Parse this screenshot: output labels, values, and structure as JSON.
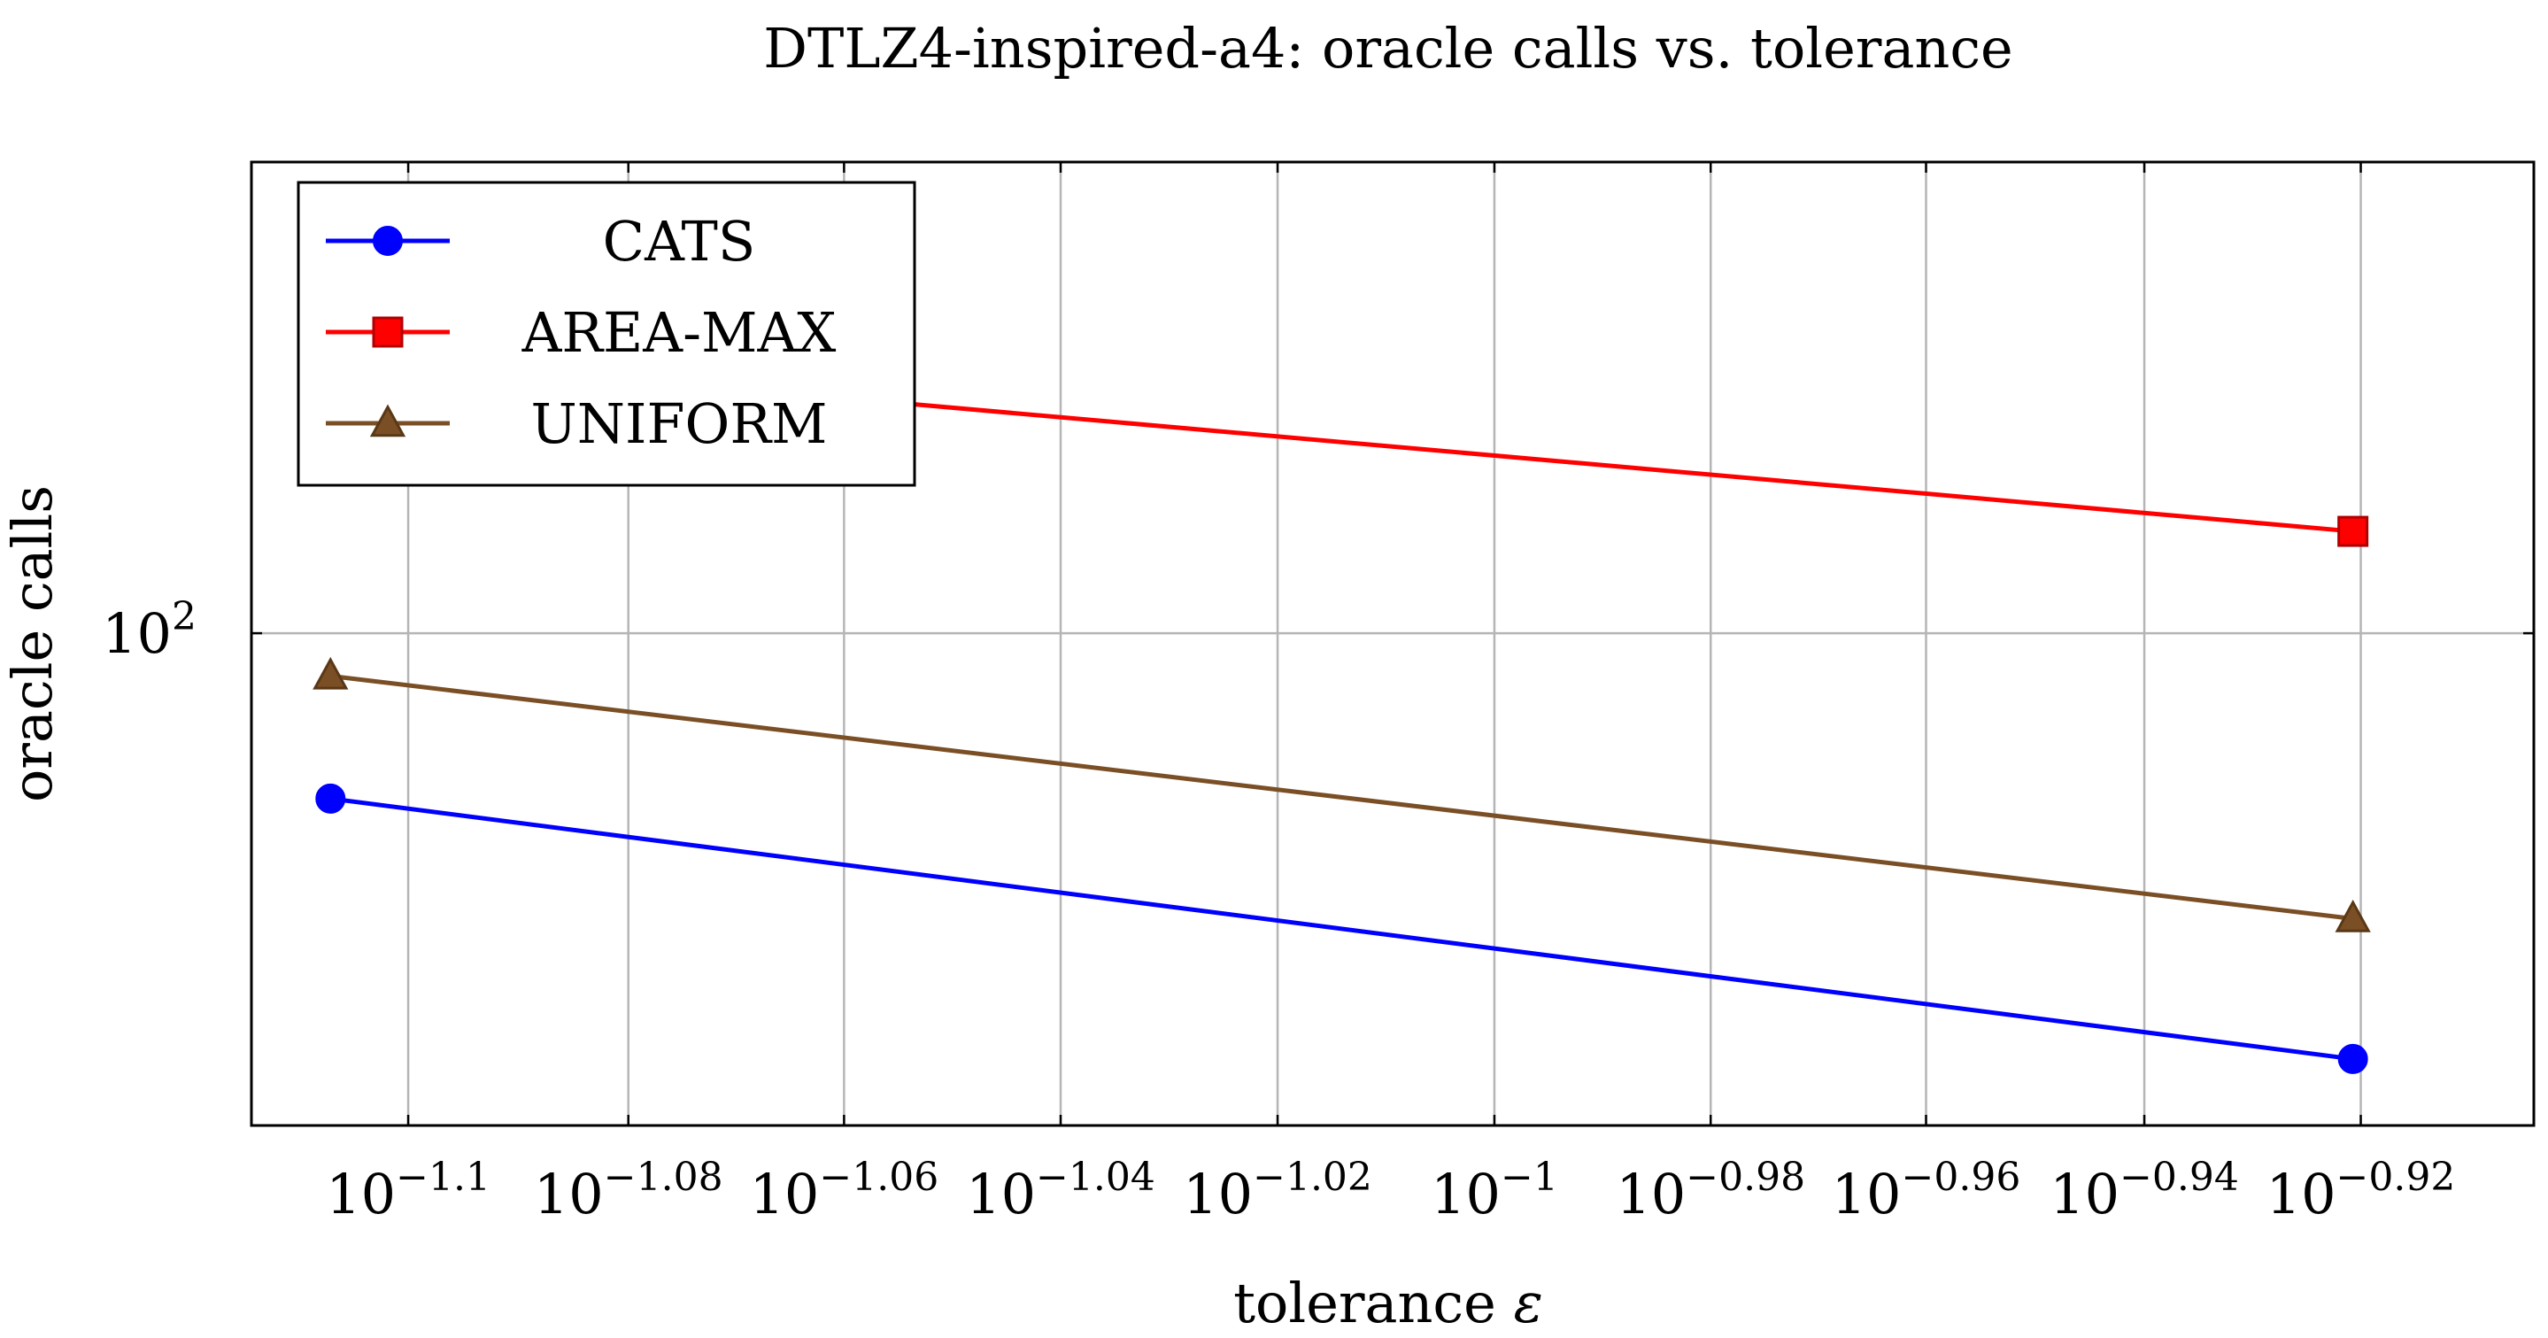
{
  "chart_data": {
    "type": "line",
    "title": "DTLZ4-inspired-a4: oracle calls vs. tolerance",
    "xlabel": "tolerance ",
    "xlabel_symbol": "ε",
    "ylabel": "oracle calls",
    "x_scale": "log",
    "y_scale": "log",
    "x_ticks": [
      {
        "base": "10",
        "exp": "−1.1",
        "value": 0.0794
      },
      {
        "base": "10",
        "exp": "−1.08",
        "value": 0.0832
      },
      {
        "base": "10",
        "exp": "−1.06",
        "value": 0.0871
      },
      {
        "base": "10",
        "exp": "−1.04",
        "value": 0.0912
      },
      {
        "base": "10",
        "exp": "−1.02",
        "value": 0.0955
      },
      {
        "base": "10",
        "exp": "−1",
        "value": 0.1
      },
      {
        "base": "10",
        "exp": "−0.98",
        "value": 0.1047
      },
      {
        "base": "10",
        "exp": "−0.96",
        "value": 0.1096
      },
      {
        "base": "10",
        "exp": "−0.94",
        "value": 0.1148
      },
      {
        "base": "10",
        "exp": "−0.92",
        "value": 0.1202
      }
    ],
    "y_ticks": [
      {
        "base": "10",
        "exp": "2",
        "value": 100
      }
    ],
    "xlim": [
      0.0768,
      0.1247
    ],
    "ylim": [
      55.4,
      176.0
    ],
    "grid": true,
    "legend_position": "top-left",
    "series": [
      {
        "name": "CATS",
        "color": "#0000ff",
        "marker": "circle",
        "x": [
          0.0781,
          0.12
        ],
        "y": [
          82,
          60
        ]
      },
      {
        "name": "AREA-MAX",
        "color": "#ff0000",
        "marker": "square",
        "x": [
          0.0781,
          0.12
        ],
        "y": [
          140,
          113
        ]
      },
      {
        "name": "UNIFORM",
        "color": "#7b4f25",
        "marker": "triangle",
        "x": [
          0.0781,
          0.12
        ],
        "y": [
          95,
          71
        ]
      }
    ]
  }
}
